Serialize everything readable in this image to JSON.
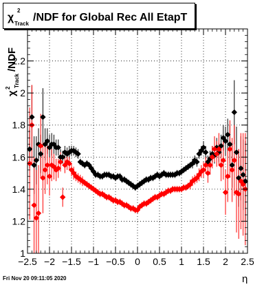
{
  "chart_data": {
    "type": "scatter",
    "title": {
      "chi": "χ",
      "sup": "2",
      "sub": "Track",
      "rest": "/NDF for Global Rec All EtapT"
    },
    "ylabel": {
      "chi": "χ",
      "sup": "2",
      "sub": "Track",
      "rest": "/NDF"
    },
    "xlabel": "η",
    "footer": "Fri Nov 20 09:11:05 2020",
    "xlim": [
      -2.5,
      2.5
    ],
    "ylim": [
      1.0,
      2.4
    ],
    "xticks": [
      -2.5,
      -2,
      -1.5,
      -1,
      -0.5,
      0,
      0.5,
      1,
      1.5,
      2,
      2.5
    ],
    "xtick_labels": [
      "−2.5",
      "−2",
      "−1.5",
      "−1",
      "−0.5",
      "0",
      "0.5",
      "1",
      "1.5",
      "2",
      "2.5"
    ],
    "yticks": [
      1,
      1.2,
      1.4,
      1.6,
      1.8,
      2,
      2.2
    ],
    "ytick_labels": [
      "1",
      "1.2",
      "1.4",
      "1.6",
      "1.8",
      "2",
      "2.2"
    ],
    "grid": true,
    "series": [
      {
        "color": "#000000",
        "marker": "diamond",
        "points": [
          [
            -2.45,
            1.65,
            0.12
          ],
          [
            -2.4,
            1.85,
            0.2
          ],
          [
            -2.35,
            1.55,
            0.18
          ],
          [
            -2.3,
            1.58,
            0.15
          ],
          [
            -2.25,
            1.68,
            0.1
          ],
          [
            -2.2,
            1.62,
            0.12
          ],
          [
            -2.15,
            1.85,
            0.18
          ],
          [
            -2.1,
            1.68,
            0.1
          ],
          [
            -2.05,
            1.7,
            0.08
          ],
          [
            -2.0,
            1.66,
            0.08
          ],
          [
            -1.95,
            1.68,
            0.07
          ],
          [
            -1.9,
            1.68,
            0.06
          ],
          [
            -1.85,
            1.66,
            0.05
          ],
          [
            -1.8,
            1.66,
            0.05
          ],
          [
            -1.75,
            1.6,
            0.05
          ],
          [
            -1.7,
            1.6,
            0.04
          ],
          [
            -1.65,
            1.63,
            0.04
          ],
          [
            -1.6,
            1.62,
            0.04
          ],
          [
            -1.55,
            1.63,
            0.04
          ],
          [
            -1.5,
            1.64,
            0.03
          ],
          [
            -1.45,
            1.64,
            0.03
          ],
          [
            -1.4,
            1.63,
            0.03
          ],
          [
            -1.35,
            1.62,
            0.03
          ],
          [
            -1.3,
            1.57,
            0.02
          ],
          [
            -1.25,
            1.56,
            0.02
          ],
          [
            -1.2,
            1.55,
            0.02
          ],
          [
            -1.15,
            1.56,
            0.02
          ],
          [
            -1.1,
            1.55,
            0.02
          ],
          [
            -1.05,
            1.53,
            0.02
          ],
          [
            -1.0,
            1.51,
            0.02
          ],
          [
            -0.95,
            1.49,
            0.02
          ],
          [
            -0.9,
            1.49,
            0.02
          ],
          [
            -0.85,
            1.48,
            0.02
          ],
          [
            -0.8,
            1.48,
            0.02
          ],
          [
            -0.75,
            1.49,
            0.02
          ],
          [
            -0.7,
            1.49,
            0.02
          ],
          [
            -0.65,
            1.49,
            0.02
          ],
          [
            -0.6,
            1.48,
            0.02
          ],
          [
            -0.55,
            1.48,
            0.02
          ],
          [
            -0.5,
            1.47,
            0.02
          ],
          [
            -0.45,
            1.48,
            0.02
          ],
          [
            -0.4,
            1.48,
            0.02
          ],
          [
            -0.35,
            1.46,
            0.02
          ],
          [
            -0.3,
            1.46,
            0.02
          ],
          [
            -0.25,
            1.45,
            0.02
          ],
          [
            -0.2,
            1.44,
            0.02
          ],
          [
            -0.15,
            1.43,
            0.02
          ],
          [
            -0.1,
            1.42,
            0.02
          ],
          [
            -0.05,
            1.41,
            0.02
          ],
          [
            0.0,
            1.42,
            0.02
          ],
          [
            0.05,
            1.43,
            0.02
          ],
          [
            0.1,
            1.44,
            0.02
          ],
          [
            0.15,
            1.45,
            0.02
          ],
          [
            0.2,
            1.46,
            0.02
          ],
          [
            0.25,
            1.46,
            0.02
          ],
          [
            0.3,
            1.47,
            0.02
          ],
          [
            0.35,
            1.47,
            0.02
          ],
          [
            0.4,
            1.48,
            0.02
          ],
          [
            0.45,
            1.49,
            0.02
          ],
          [
            0.5,
            1.48,
            0.02
          ],
          [
            0.55,
            1.49,
            0.02
          ],
          [
            0.6,
            1.5,
            0.02
          ],
          [
            0.65,
            1.49,
            0.02
          ],
          [
            0.7,
            1.49,
            0.02
          ],
          [
            0.75,
            1.49,
            0.02
          ],
          [
            0.8,
            1.49,
            0.02
          ],
          [
            0.85,
            1.49,
            0.02
          ],
          [
            0.9,
            1.5,
            0.02
          ],
          [
            0.95,
            1.5,
            0.02
          ],
          [
            1.0,
            1.51,
            0.02
          ],
          [
            1.05,
            1.52,
            0.02
          ],
          [
            1.1,
            1.53,
            0.02
          ],
          [
            1.15,
            1.54,
            0.02
          ],
          [
            1.2,
            1.55,
            0.02
          ],
          [
            1.25,
            1.56,
            0.03
          ],
          [
            1.3,
            1.58,
            0.03
          ],
          [
            1.35,
            1.57,
            0.03
          ],
          [
            1.4,
            1.62,
            0.03
          ],
          [
            1.45,
            1.64,
            0.03
          ],
          [
            1.5,
            1.66,
            0.04
          ],
          [
            1.55,
            1.63,
            0.04
          ],
          [
            1.6,
            1.57,
            0.04
          ],
          [
            1.65,
            1.59,
            0.05
          ],
          [
            1.7,
            1.62,
            0.05
          ],
          [
            1.75,
            1.61,
            0.05
          ],
          [
            1.8,
            1.66,
            0.06
          ],
          [
            1.85,
            1.63,
            0.06
          ],
          [
            1.9,
            1.67,
            0.07
          ],
          [
            1.95,
            1.72,
            0.08
          ],
          [
            2.0,
            1.7,
            0.09
          ],
          [
            2.05,
            1.74,
            0.1
          ],
          [
            2.1,
            1.68,
            0.12
          ],
          [
            2.15,
            1.55,
            0.14
          ],
          [
            2.2,
            1.88,
            0.2
          ],
          [
            2.25,
            1.63,
            0.16
          ],
          [
            2.3,
            1.47,
            0.18
          ],
          [
            2.35,
            1.53,
            0.2
          ],
          [
            2.4,
            1.49,
            0.22
          ],
          [
            2.45,
            1.45,
            0.25
          ]
        ]
      },
      {
        "color": "#ff0000",
        "marker": "diamond",
        "points": [
          [
            -2.45,
            1.56,
            0.35
          ],
          [
            -2.4,
            1.8,
            0.25
          ],
          [
            -2.35,
            1.3,
            0.3
          ],
          [
            -2.3,
            1.22,
            0.3
          ],
          [
            -2.25,
            1.25,
            0.3
          ],
          [
            -2.2,
            1.67,
            0.2
          ],
          [
            -2.15,
            1.47,
            0.22
          ],
          [
            -2.1,
            1.52,
            0.15
          ],
          [
            -2.05,
            1.55,
            0.12
          ],
          [
            -2.0,
            1.48,
            0.12
          ],
          [
            -1.95,
            1.55,
            0.1
          ],
          [
            -1.9,
            1.54,
            0.08
          ],
          [
            -1.85,
            1.52,
            0.07
          ],
          [
            -1.8,
            1.53,
            0.06
          ],
          [
            -1.75,
            1.57,
            0.06
          ],
          [
            -1.7,
            1.35,
            0.06
          ],
          [
            -1.65,
            1.55,
            0.05
          ],
          [
            -1.6,
            1.57,
            0.05
          ],
          [
            -1.55,
            1.56,
            0.04
          ],
          [
            -1.5,
            1.52,
            0.04
          ],
          [
            -1.45,
            1.5,
            0.04
          ],
          [
            -1.4,
            1.48,
            0.03
          ],
          [
            -1.35,
            1.47,
            0.03
          ],
          [
            -1.3,
            1.46,
            0.03
          ],
          [
            -1.25,
            1.45,
            0.03
          ],
          [
            -1.2,
            1.44,
            0.02
          ],
          [
            -1.15,
            1.43,
            0.02
          ],
          [
            -1.1,
            1.42,
            0.02
          ],
          [
            -1.05,
            1.41,
            0.02
          ],
          [
            -1.0,
            1.4,
            0.02
          ],
          [
            -0.95,
            1.39,
            0.02
          ],
          [
            -0.9,
            1.38,
            0.02
          ],
          [
            -0.85,
            1.37,
            0.02
          ],
          [
            -0.8,
            1.37,
            0.02
          ],
          [
            -0.75,
            1.36,
            0.02
          ],
          [
            -0.7,
            1.35,
            0.02
          ],
          [
            -0.65,
            1.35,
            0.02
          ],
          [
            -0.6,
            1.34,
            0.02
          ],
          [
            -0.55,
            1.33,
            0.02
          ],
          [
            -0.5,
            1.33,
            0.02
          ],
          [
            -0.45,
            1.32,
            0.02
          ],
          [
            -0.4,
            1.32,
            0.02
          ],
          [
            -0.35,
            1.31,
            0.02
          ],
          [
            -0.3,
            1.3,
            0.02
          ],
          [
            -0.25,
            1.3,
            0.02
          ],
          [
            -0.2,
            1.29,
            0.02
          ],
          [
            -0.15,
            1.28,
            0.02
          ],
          [
            -0.1,
            1.28,
            0.02
          ],
          [
            -0.05,
            1.27,
            0.02
          ],
          [
            0.0,
            1.27,
            0.02
          ],
          [
            0.05,
            1.29,
            0.02
          ],
          [
            0.1,
            1.3,
            0.02
          ],
          [
            0.15,
            1.31,
            0.02
          ],
          [
            0.2,
            1.31,
            0.02
          ],
          [
            0.25,
            1.32,
            0.02
          ],
          [
            0.3,
            1.33,
            0.02
          ],
          [
            0.35,
            1.34,
            0.02
          ],
          [
            0.4,
            1.35,
            0.02
          ],
          [
            0.45,
            1.35,
            0.02
          ],
          [
            0.5,
            1.36,
            0.02
          ],
          [
            0.55,
            1.37,
            0.02
          ],
          [
            0.6,
            1.37,
            0.02
          ],
          [
            0.65,
            1.38,
            0.02
          ],
          [
            0.7,
            1.39,
            0.02
          ],
          [
            0.75,
            1.39,
            0.02
          ],
          [
            0.8,
            1.4,
            0.02
          ],
          [
            0.85,
            1.4,
            0.02
          ],
          [
            0.9,
            1.4,
            0.02
          ],
          [
            0.95,
            1.4,
            0.02
          ],
          [
            1.0,
            1.4,
            0.02
          ],
          [
            1.05,
            1.41,
            0.02
          ],
          [
            1.1,
            1.41,
            0.02
          ],
          [
            1.15,
            1.42,
            0.02
          ],
          [
            1.2,
            1.43,
            0.03
          ],
          [
            1.25,
            1.45,
            0.03
          ],
          [
            1.3,
            1.46,
            0.03
          ],
          [
            1.35,
            1.47,
            0.03
          ],
          [
            1.4,
            1.49,
            0.04
          ],
          [
            1.45,
            1.51,
            0.04
          ],
          [
            1.5,
            1.52,
            0.05
          ],
          [
            1.55,
            1.55,
            0.05
          ],
          [
            1.6,
            1.5,
            0.06
          ],
          [
            1.65,
            1.55,
            0.06
          ],
          [
            1.7,
            1.6,
            0.07
          ],
          [
            1.75,
            1.65,
            0.08
          ],
          [
            1.8,
            1.62,
            0.08
          ],
          [
            1.85,
            1.65,
            0.1
          ],
          [
            1.9,
            1.55,
            0.1
          ],
          [
            1.95,
            1.58,
            0.12
          ],
          [
            2.0,
            1.38,
            0.14
          ],
          [
            2.05,
            1.48,
            0.16
          ],
          [
            2.1,
            1.65,
            0.18
          ],
          [
            2.15,
            1.52,
            0.2
          ],
          [
            2.2,
            1.58,
            0.22
          ],
          [
            2.25,
            1.38,
            0.25
          ],
          [
            2.3,
            1.37,
            0.28
          ],
          [
            2.35,
            1.45,
            0.3
          ],
          [
            2.4,
            1.43,
            0.32
          ],
          [
            2.45,
            1.4,
            0.35
          ]
        ]
      }
    ]
  }
}
